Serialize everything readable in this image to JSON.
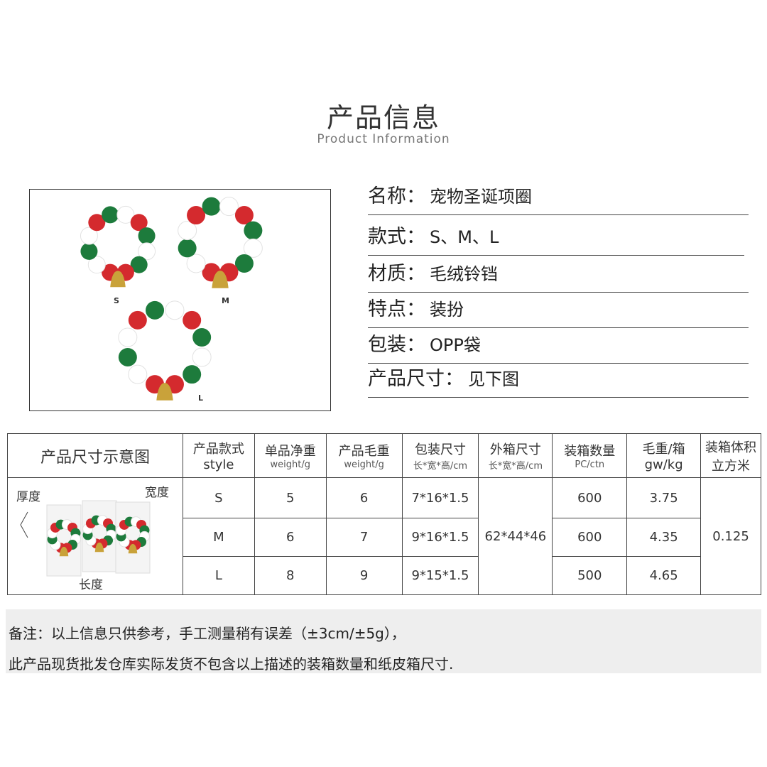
{
  "header": {
    "title": "产品信息",
    "subtitle": "Product Information"
  },
  "photo": {
    "sizes": [
      "S",
      "M",
      "L"
    ],
    "colors": {
      "red": "#d42a2e",
      "green": "#1d7b3c",
      "white": "#ffffff",
      "bell": "#c9a23a"
    }
  },
  "info": [
    {
      "label": "名称：",
      "value": "宠物圣诞项圈"
    },
    {
      "label": "款式：",
      "value": "S、M、L"
    },
    {
      "label": "材质：",
      "value": "毛绒铃铛"
    },
    {
      "label": "特点：",
      "value": "装扮"
    },
    {
      "label": "包装：",
      "value": "OPP袋"
    },
    {
      "label": "产品尺寸：",
      "value": "见下图"
    }
  ],
  "table": {
    "diagram_header": "产品尺寸示意图",
    "diagram_labels": {
      "thickness": "厚度",
      "width": "宽度",
      "length": "长度"
    },
    "headers": [
      {
        "cn": "产品款式",
        "en": "style"
      },
      {
        "cn": "单品净重",
        "en": "weight/g"
      },
      {
        "cn": "产品毛重",
        "en": "weight/g"
      },
      {
        "cn": "包装尺寸",
        "en": "长*宽*高/cm"
      },
      {
        "cn": "外箱尺寸",
        "en": "长*宽*高/cm"
      },
      {
        "cn": "装箱数量",
        "en": "PC/ctn"
      },
      {
        "cn": "毛重/箱",
        "en": "gw/kg"
      },
      {
        "cn": "装箱体积",
        "en": "立方米"
      }
    ],
    "rows": [
      {
        "style": "S",
        "net": "5",
        "gross": "6",
        "pack": "7*16*1.5",
        "qty": "600",
        "gw": "3.75"
      },
      {
        "style": "M",
        "net": "6",
        "gross": "7",
        "pack": "9*16*1.5",
        "qty": "600",
        "gw": "4.35"
      },
      {
        "style": "L",
        "net": "8",
        "gross": "9",
        "pack": "9*15*1.5",
        "qty": "500",
        "gw": "4.65"
      }
    ],
    "carton": "62*44*46",
    "volume": "0.125"
  },
  "notes": [
    "备注：以上信息只供参考，手工测量稍有误差（±3cm/±5g），",
    "此产品现货批发仓库实际发货不包含以上描述的装箱数量和纸皮箱尺寸."
  ]
}
